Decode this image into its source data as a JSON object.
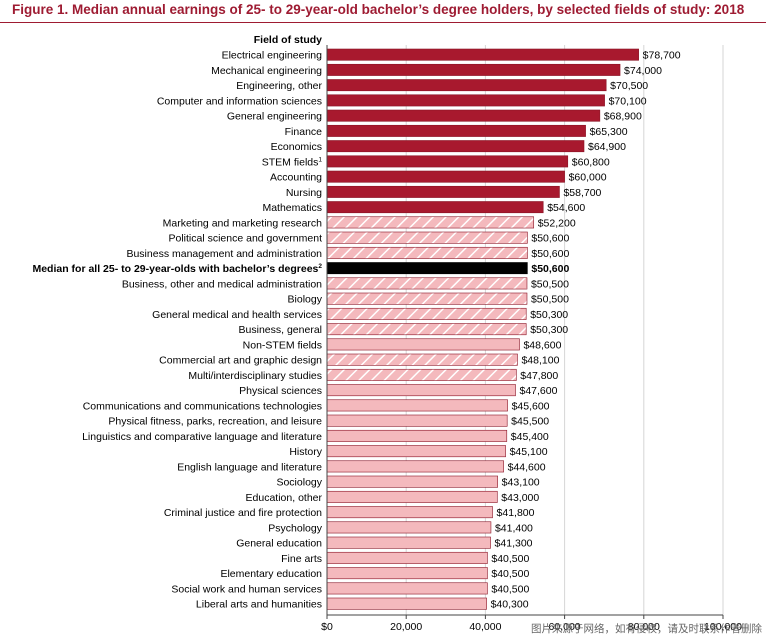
{
  "figure_title": "Figure 1.   Median annual earnings of 25- to 29-year-old bachelor’s degree holders, by selected fields of study: 2018",
  "watermark": "图片来源于网络，如有侵权，请及时联系作者删除",
  "colors": {
    "stem": "#a8192e",
    "median": "#000000",
    "stripe_fill": "#f4b9bd",
    "stripe_line": "#ffffff",
    "other": "#f4b9bd",
    "bar_stroke": "#8a1426",
    "title": "#9e1b32"
  },
  "chart_data": {
    "type": "bar",
    "orientation": "horizontal",
    "title": "Median annual earnings of 25- to 29-year-old bachelor’s degree holders, by selected fields of study: 2018",
    "category_header": "Field of study",
    "xlim": [
      0,
      100000
    ],
    "xticks": [
      0,
      20000,
      40000,
      60000,
      80000,
      100000
    ],
    "xtick_labels": [
      "$0",
      "20,000",
      "40,000",
      "60,000",
      "80,000",
      "100,000"
    ],
    "bars": [
      {
        "field": "Electrical engineering",
        "sup": "",
        "value": 78700,
        "label": "$78,700",
        "style": "stem"
      },
      {
        "field": "Mechanical engineering",
        "sup": "",
        "value": 74000,
        "label": "$74,000",
        "style": "stem"
      },
      {
        "field": "Engineering, other",
        "sup": "",
        "value": 70500,
        "label": "$70,500",
        "style": "stem"
      },
      {
        "field": "Computer and information sciences",
        "sup": "",
        "value": 70100,
        "label": "$70,100",
        "style": "stem"
      },
      {
        "field": "General engineering",
        "sup": "",
        "value": 68900,
        "label": "$68,900",
        "style": "stem"
      },
      {
        "field": "Finance",
        "sup": "",
        "value": 65300,
        "label": "$65,300",
        "style": "stem"
      },
      {
        "field": "Economics",
        "sup": "",
        "value": 64900,
        "label": "$64,900",
        "style": "stem"
      },
      {
        "field": "STEM fields",
        "sup": "1",
        "value": 60800,
        "label": "$60,800",
        "style": "stem"
      },
      {
        "field": "Accounting",
        "sup": "",
        "value": 60000,
        "label": "$60,000",
        "style": "stem"
      },
      {
        "field": "Nursing",
        "sup": "",
        "value": 58700,
        "label": "$58,700",
        "style": "stem"
      },
      {
        "field": "Mathematics",
        "sup": "",
        "value": 54600,
        "label": "$54,600",
        "style": "stem"
      },
      {
        "field": "Marketing and marketing research",
        "sup": "",
        "value": 52200,
        "label": "$52,200",
        "style": "striped"
      },
      {
        "field": "Political science and government",
        "sup": "",
        "value": 50600,
        "label": "$50,600",
        "style": "striped"
      },
      {
        "field": "Business management and administration",
        "sup": "",
        "value": 50600,
        "label": "$50,600",
        "style": "striped"
      },
      {
        "field": "Median for all 25- to 29-year-olds with bachelor’s degrees",
        "sup": "2",
        "value": 50600,
        "label": "$50,600",
        "style": "median"
      },
      {
        "field": "Business, other and medical administration",
        "sup": "",
        "value": 50500,
        "label": "$50,500",
        "style": "striped"
      },
      {
        "field": "Biology",
        "sup": "",
        "value": 50500,
        "label": "$50,500",
        "style": "striped"
      },
      {
        "field": "General medical and health services",
        "sup": "",
        "value": 50300,
        "label": "$50,300",
        "style": "striped"
      },
      {
        "field": "Business, general",
        "sup": "",
        "value": 50300,
        "label": "$50,300",
        "style": "striped"
      },
      {
        "field": "Non-STEM fields",
        "sup": "",
        "value": 48600,
        "label": "$48,600",
        "style": "other"
      },
      {
        "field": "Commercial art and graphic design",
        "sup": "",
        "value": 48100,
        "label": "$48,100",
        "style": "striped"
      },
      {
        "field": "Multi/interdisciplinary studies",
        "sup": "",
        "value": 47800,
        "label": "$47,800",
        "style": "striped"
      },
      {
        "field": "Physical sciences",
        "sup": "",
        "value": 47600,
        "label": "$47,600",
        "style": "other"
      },
      {
        "field": "Communications and communications technologies",
        "sup": "",
        "value": 45600,
        "label": "$45,600",
        "style": "other"
      },
      {
        "field": "Physical fitness, parks, recreation, and leisure",
        "sup": "",
        "value": 45500,
        "label": "$45,500",
        "style": "other"
      },
      {
        "field": "Linguistics and comparative language and literature",
        "sup": "",
        "value": 45400,
        "label": "$45,400",
        "style": "other"
      },
      {
        "field": "History",
        "sup": "",
        "value": 45100,
        "label": "$45,100",
        "style": "other"
      },
      {
        "field": "English language and literature",
        "sup": "",
        "value": 44600,
        "label": "$44,600",
        "style": "other"
      },
      {
        "field": "Sociology",
        "sup": "",
        "value": 43100,
        "label": "$43,100",
        "style": "other"
      },
      {
        "field": "Education, other",
        "sup": "",
        "value": 43000,
        "label": "$43,000",
        "style": "other"
      },
      {
        "field": "Criminal justice and fire protection",
        "sup": "",
        "value": 41800,
        "label": "$41,800",
        "style": "other"
      },
      {
        "field": "Psychology",
        "sup": "",
        "value": 41400,
        "label": "$41,400",
        "style": "other"
      },
      {
        "field": "General education",
        "sup": "",
        "value": 41300,
        "label": "$41,300",
        "style": "other"
      },
      {
        "field": "Fine arts",
        "sup": "",
        "value": 40500,
        "label": "$40,500",
        "style": "other"
      },
      {
        "field": "Elementary education",
        "sup": "",
        "value": 40500,
        "label": "$40,500",
        "style": "other"
      },
      {
        "field": "Social work and human services",
        "sup": "",
        "value": 40500,
        "label": "$40,500",
        "style": "other"
      },
      {
        "field": "Liberal arts and humanities",
        "sup": "",
        "value": 40300,
        "label": "$40,300",
        "style": "other"
      }
    ]
  }
}
